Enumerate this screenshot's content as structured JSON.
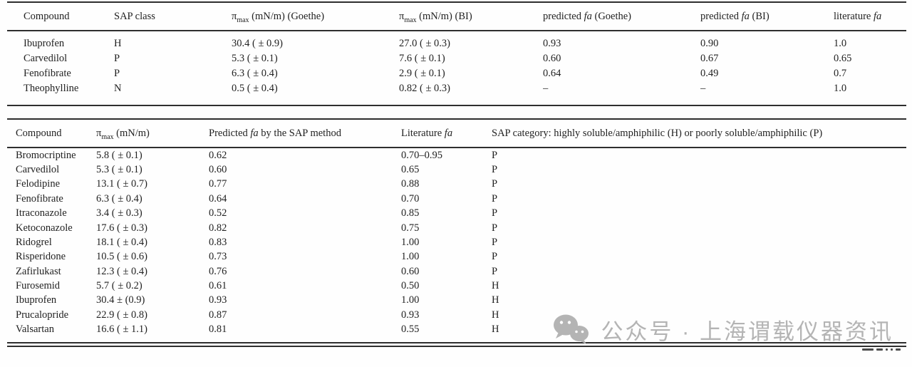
{
  "page": {
    "background": "#fefefe",
    "text_color": "#222222",
    "rule_color": "#2e2e2e"
  },
  "tables": [
    {
      "name": "surface-pressure-validation-table",
      "columns": [
        {
          "name": "compound",
          "segments": [
            {
              "t": "Compound"
            }
          ]
        },
        {
          "name": "sap-class",
          "segments": [
            {
              "t": "SAP class"
            }
          ]
        },
        {
          "name": "pi-max-goethe",
          "segments": [
            {
              "t": "π"
            },
            {
              "t": "max",
              "sub": true
            },
            {
              "t": " (mN/m) (Goethe)"
            }
          ]
        },
        {
          "name": "pi-max-bi",
          "segments": [
            {
              "t": "π"
            },
            {
              "t": "max",
              "sub": true
            },
            {
              "t": " (mN/m) (BI)"
            }
          ]
        },
        {
          "name": "predicted-fa-goethe",
          "segments": [
            {
              "t": "predicted "
            },
            {
              "t": "fa",
              "italic": true
            },
            {
              "t": " (Goethe)"
            }
          ]
        },
        {
          "name": "predicted-fa-bi",
          "segments": [
            {
              "t": "predicted "
            },
            {
              "t": "fa",
              "italic": true
            },
            {
              "t": " (BI)"
            }
          ]
        },
        {
          "name": "literature-fa",
          "segments": [
            {
              "t": "literature "
            },
            {
              "t": "fa",
              "italic": true
            }
          ]
        }
      ],
      "rows": [
        [
          "Ibuprofen",
          "H",
          "30.4 ( ± 0.9)",
          "27.0 ( ± 0.3)",
          "0.93",
          "0.90",
          "1.0"
        ],
        [
          "Carvedilol",
          "P",
          "5.3 ( ± 0.1)",
          "7.6 ( ± 0.1)",
          "0.60",
          "0.67",
          "0.65"
        ],
        [
          "Fenofibrate",
          "P",
          "6.3 ( ± 0.4)",
          "2.9 ( ± 0.1)",
          "0.64",
          "0.49",
          "0.7"
        ],
        [
          "Theophylline",
          "N",
          "0.5 ( ± 0.4)",
          "0.82 ( ± 0.3)",
          "–",
          "–",
          "1.0"
        ]
      ]
    },
    {
      "name": "sap-method-prediction-table",
      "columns": [
        {
          "name": "compound",
          "segments": [
            {
              "t": "Compound"
            }
          ]
        },
        {
          "name": "pi-max",
          "segments": [
            {
              "t": "π"
            },
            {
              "t": "max",
              "sub": true
            },
            {
              "t": " (mN/m)"
            }
          ]
        },
        {
          "name": "predicted-fa-sap",
          "segments": [
            {
              "t": "Predicted "
            },
            {
              "t": "fa",
              "italic": true
            },
            {
              "t": " by the SAP method"
            }
          ]
        },
        {
          "name": "literature-fa",
          "segments": [
            {
              "t": "Literature "
            },
            {
              "t": "fa",
              "italic": true
            }
          ]
        },
        {
          "name": "sap-category",
          "segments": [
            {
              "t": "SAP category: highly soluble/amphiphilic (H) or poorly soluble/amphiphilic (P)"
            }
          ]
        }
      ],
      "rows": [
        [
          "Bromocriptine",
          "5.8 ( ± 0.1)",
          "0.62",
          "0.70–0.95",
          "P"
        ],
        [
          "Carvedilol",
          "5.3 ( ± 0.1)",
          "0.60",
          "0.65",
          "P"
        ],
        [
          "Felodipine",
          "13.1 ( ± 0.7)",
          "0.77",
          "0.88",
          "P"
        ],
        [
          "Fenofibrate",
          "6.3 ( ± 0.4)",
          "0.64",
          "0.70",
          "P"
        ],
        [
          "Itraconazole",
          "3.4 ( ± 0.3)",
          "0.52",
          "0.85",
          "P"
        ],
        [
          "Ketoconazole",
          "17.6 ( ± 0.3)",
          "0.82",
          "0.75",
          "P"
        ],
        [
          "Ridogrel",
          "18.1 ( ± 0.4)",
          "0.83",
          "1.00",
          "P"
        ],
        [
          "Risperidone",
          "10.5 ( ± 0.6)",
          "0.73",
          "1.00",
          "P"
        ],
        [
          "Zafirlukast",
          "12.3 ( ± 0.4)",
          "0.76",
          "0.60",
          "P"
        ],
        [
          "Furosemid",
          "5.7 ( ± 0.2)",
          "0.61",
          "0.50",
          "H"
        ],
        [
          "Ibuprofen",
          "30.4 ± (0.9)",
          "0.93",
          "1.00",
          "H"
        ],
        [
          "Prucalopride",
          "22.9 ( ± 0.8)",
          "0.87",
          "0.93",
          "H"
        ],
        [
          "Valsartan",
          "16.6 ( ± 1.1)",
          "0.81",
          "0.55",
          "H"
        ]
      ]
    }
  ],
  "watermark": {
    "icon": "wechat-icon",
    "text": "公众号 · 上海谓载仪器资讯",
    "color": "#b4b4b4"
  }
}
